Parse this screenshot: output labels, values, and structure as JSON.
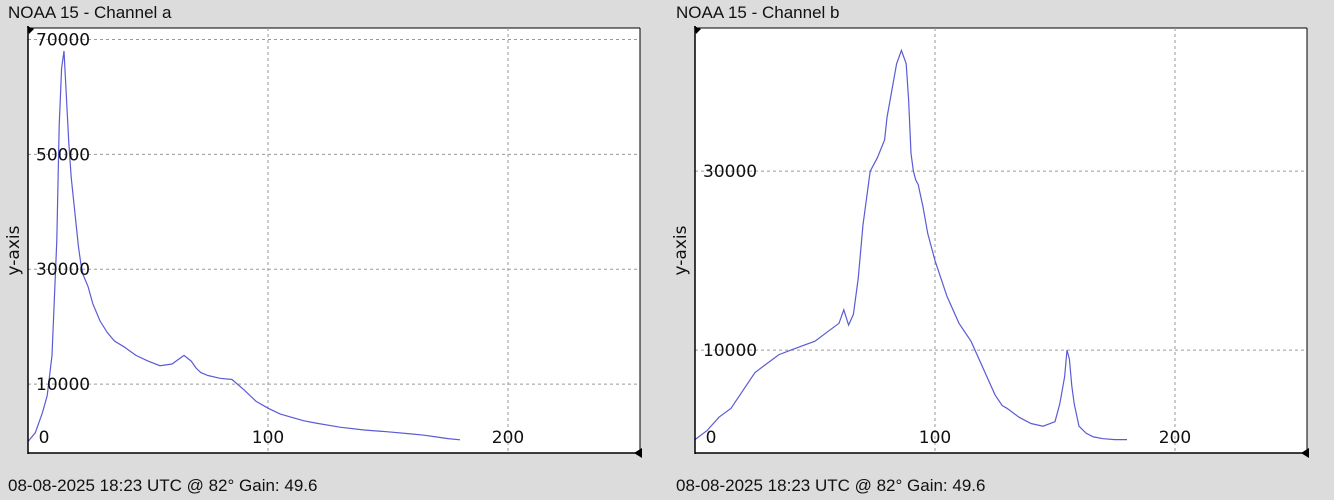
{
  "panels": [
    {
      "title": "NOAA 15 - Channel a",
      "footer": "08-08-2025 18:23 UTC @ 82° Gain: 49.6"
    },
    {
      "title": "NOAA 15 - Channel b",
      "footer": "08-08-2025 18:23 UTC @ 82° Gain: 49.6"
    }
  ],
  "colors": {
    "background": "#dcdcdc",
    "plot_background": "#ffffff",
    "line": "#5b5bd6",
    "grid": "#9a9a9a",
    "axis": "#000000"
  },
  "chart_data": [
    {
      "type": "line",
      "title": "NOAA 15 - Channel a",
      "xlabel": "",
      "ylabel": "y-axis",
      "xlim": [
        0,
        255
      ],
      "ylim": [
        -2000,
        72000
      ],
      "x_ticks": [
        0,
        100,
        200
      ],
      "x_tick_labels": [
        "0",
        "100",
        "200"
      ],
      "y_ticks": [
        10000,
        30000,
        50000,
        70000
      ],
      "y_tick_labels": [
        "10000",
        "30000",
        "50000",
        "70000"
      ],
      "grid": true,
      "series": [
        {
          "x": [
            0,
            3,
            6,
            8,
            10,
            12,
            13,
            14,
            15,
            16,
            17,
            18,
            19,
            20,
            21,
            22,
            23,
            25,
            27,
            30,
            33,
            36,
            40,
            45,
            50,
            55,
            60,
            65,
            68,
            70,
            72,
            75,
            80,
            85,
            90,
            95,
            100,
            105,
            110,
            115,
            120,
            130,
            140,
            150,
            160,
            165,
            170,
            175,
            180
          ],
          "y": [
            0,
            1500,
            5000,
            8000,
            15000,
            35000,
            55000,
            65000,
            68000,
            60000,
            52000,
            46000,
            42000,
            38000,
            34000,
            31000,
            29000,
            27000,
            24000,
            21000,
            19000,
            17500,
            16500,
            15000,
            14000,
            13200,
            13500,
            15000,
            14000,
            12800,
            12000,
            11500,
            11000,
            10800,
            9000,
            7000,
            5800,
            4800,
            4200,
            3600,
            3200,
            2500,
            2000,
            1700,
            1300,
            1100,
            800,
            500,
            300
          ]
        }
      ]
    },
    {
      "type": "line",
      "title": "NOAA 15 - Channel b",
      "xlabel": "",
      "ylabel": "y-axis",
      "xlim": [
        0,
        255
      ],
      "ylim": [
        -1500,
        46000
      ],
      "x_ticks": [
        0,
        100,
        200
      ],
      "x_tick_labels": [
        "0",
        "100",
        "200"
      ],
      "y_ticks": [
        10000,
        30000
      ],
      "y_tick_labels": [
        "10000",
        "30000"
      ],
      "grid": true,
      "series": [
        {
          "x": [
            0,
            5,
            10,
            15,
            20,
            25,
            30,
            35,
            40,
            45,
            50,
            55,
            60,
            62,
            64,
            66,
            68,
            70,
            73,
            76,
            79,
            80,
            82,
            84,
            86,
            88,
            89,
            90,
            91,
            92,
            93,
            95,
            97,
            100,
            105,
            110,
            115,
            120,
            125,
            128,
            130,
            135,
            140,
            145,
            150,
            152,
            154,
            155,
            156,
            157,
            158,
            160,
            163,
            166,
            170,
            175,
            180
          ],
          "y": [
            0,
            1000,
            2500,
            3500,
            5500,
            7500,
            8500,
            9500,
            10000,
            10500,
            11000,
            12000,
            13000,
            14500,
            12800,
            14000,
            18000,
            24000,
            30000,
            31500,
            33500,
            36000,
            39000,
            42000,
            43500,
            42000,
            38000,
            32000,
            30000,
            29000,
            28500,
            26000,
            23000,
            20000,
            16000,
            13000,
            11000,
            8000,
            5000,
            3800,
            3500,
            2500,
            1800,
            1500,
            2000,
            4000,
            7000,
            10000,
            9000,
            6000,
            4000,
            1500,
            700,
            300,
            100,
            0,
            0
          ]
        }
      ]
    }
  ]
}
